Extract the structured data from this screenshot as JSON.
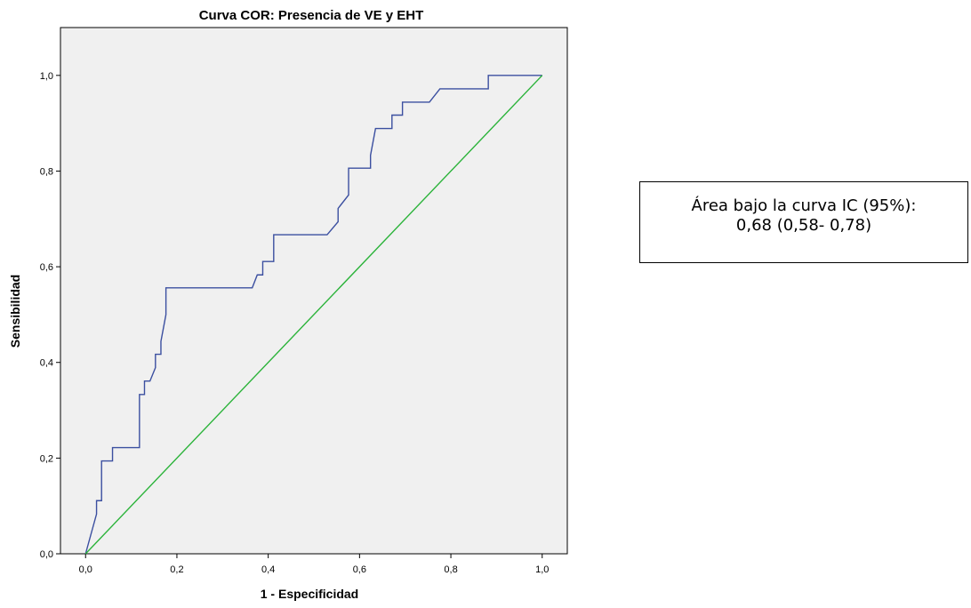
{
  "chart_data": {
    "type": "line",
    "title": "Curva COR: Presencia de VE y EHT",
    "xlabel": "1 - Especificidad",
    "ylabel": "Sensibilidad",
    "xlim": [
      -0.055,
      1.055
    ],
    "ylim": [
      0.0,
      1.1
    ],
    "x_ticks": [
      "0,0",
      "0,2",
      "0,4",
      "0,6",
      "0,8",
      "1,0"
    ],
    "y_ticks": [
      "0,0",
      "0,2",
      "0,4",
      "0,6",
      "0,8",
      "1,0"
    ],
    "grid": false,
    "colors": {
      "plot_background": "#f0f0f0",
      "roc_curve": "#3b4fa0",
      "reference_line": "#2bb33a"
    },
    "series": [
      {
        "values": [
          [
            0.0,
            0.0
          ],
          [
            0.024,
            0.083
          ],
          [
            0.024,
            0.111
          ],
          [
            0.035,
            0.111
          ],
          [
            0.035,
            0.194
          ],
          [
            0.059,
            0.194
          ],
          [
            0.059,
            0.222
          ],
          [
            0.118,
            0.222
          ],
          [
            0.118,
            0.333
          ],
          [
            0.129,
            0.333
          ],
          [
            0.129,
            0.361
          ],
          [
            0.141,
            0.361
          ],
          [
            0.153,
            0.389
          ],
          [
            0.153,
            0.417
          ],
          [
            0.165,
            0.417
          ],
          [
            0.165,
            0.444
          ],
          [
            0.176,
            0.5
          ],
          [
            0.176,
            0.556
          ],
          [
            0.365,
            0.556
          ],
          [
            0.376,
            0.583
          ],
          [
            0.388,
            0.583
          ],
          [
            0.388,
            0.611
          ],
          [
            0.412,
            0.611
          ],
          [
            0.412,
            0.667
          ],
          [
            0.529,
            0.667
          ],
          [
            0.553,
            0.694
          ],
          [
            0.553,
            0.722
          ],
          [
            0.576,
            0.75
          ],
          [
            0.576,
            0.806
          ],
          [
            0.624,
            0.806
          ],
          [
            0.624,
            0.833
          ],
          [
            0.635,
            0.889
          ],
          [
            0.671,
            0.889
          ],
          [
            0.671,
            0.917
          ],
          [
            0.694,
            0.917
          ],
          [
            0.694,
            0.944
          ],
          [
            0.753,
            0.944
          ],
          [
            0.776,
            0.972
          ],
          [
            0.882,
            0.972
          ],
          [
            0.882,
            1.0
          ],
          [
            1.0,
            1.0
          ]
        ]
      },
      {
        "values": [
          [
            0.0,
            0.0
          ],
          [
            1.0,
            1.0
          ]
        ]
      }
    ]
  },
  "annotation": {
    "line1": "Área bajo la curva IC (95%):",
    "line2": "0,68 (0,58- 0,78)"
  }
}
